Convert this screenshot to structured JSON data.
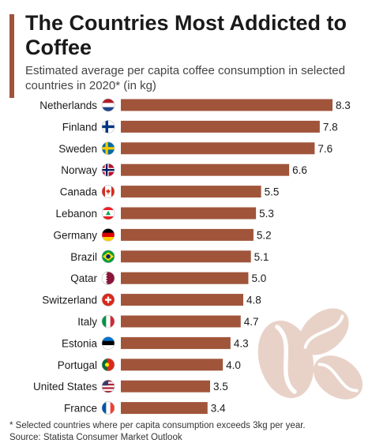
{
  "header": {
    "title": "The Countries Most Addicted to Coffee",
    "subtitle": "Estimated average per capita coffee consumption in selected countries in 2020* (in kg)"
  },
  "footer": {
    "note": "* Selected countries where per capita consumption exceeds 3kg per year.",
    "source": "Source: Statista Consumer Market Outlook"
  },
  "colors": {
    "bar": "#a0553b",
    "accent": "#a0553b",
    "bean": "#e8d2c8",
    "bean_crease": "#c9a596"
  },
  "icons": [
    "flag-icon",
    "coffee-bean-icon"
  ],
  "chart_data": {
    "type": "bar",
    "orientation": "horizontal",
    "categories": [
      "Netherlands",
      "Finland",
      "Sweden",
      "Norway",
      "Canada",
      "Lebanon",
      "Germany",
      "Brazil",
      "Qatar",
      "Switzerland",
      "Italy",
      "Estonia",
      "Portugal",
      "United States",
      "France"
    ],
    "values": [
      8.3,
      7.8,
      7.6,
      6.6,
      5.5,
      5.3,
      5.2,
      5.1,
      5.0,
      4.8,
      4.7,
      4.3,
      4.0,
      3.5,
      3.4
    ],
    "value_labels": [
      "8.3",
      "7.8",
      "7.6",
      "6.6",
      "5.5",
      "5.3",
      "5.2",
      "5.1",
      "5.0",
      "4.8",
      "4.7",
      "4.3",
      "4.0",
      "3.5",
      "3.4"
    ],
    "title": "The Countries Most Addicted to Coffee",
    "xlabel": "",
    "ylabel": "",
    "xlim": [
      0,
      8.3
    ],
    "grid": false,
    "legend": "none"
  }
}
